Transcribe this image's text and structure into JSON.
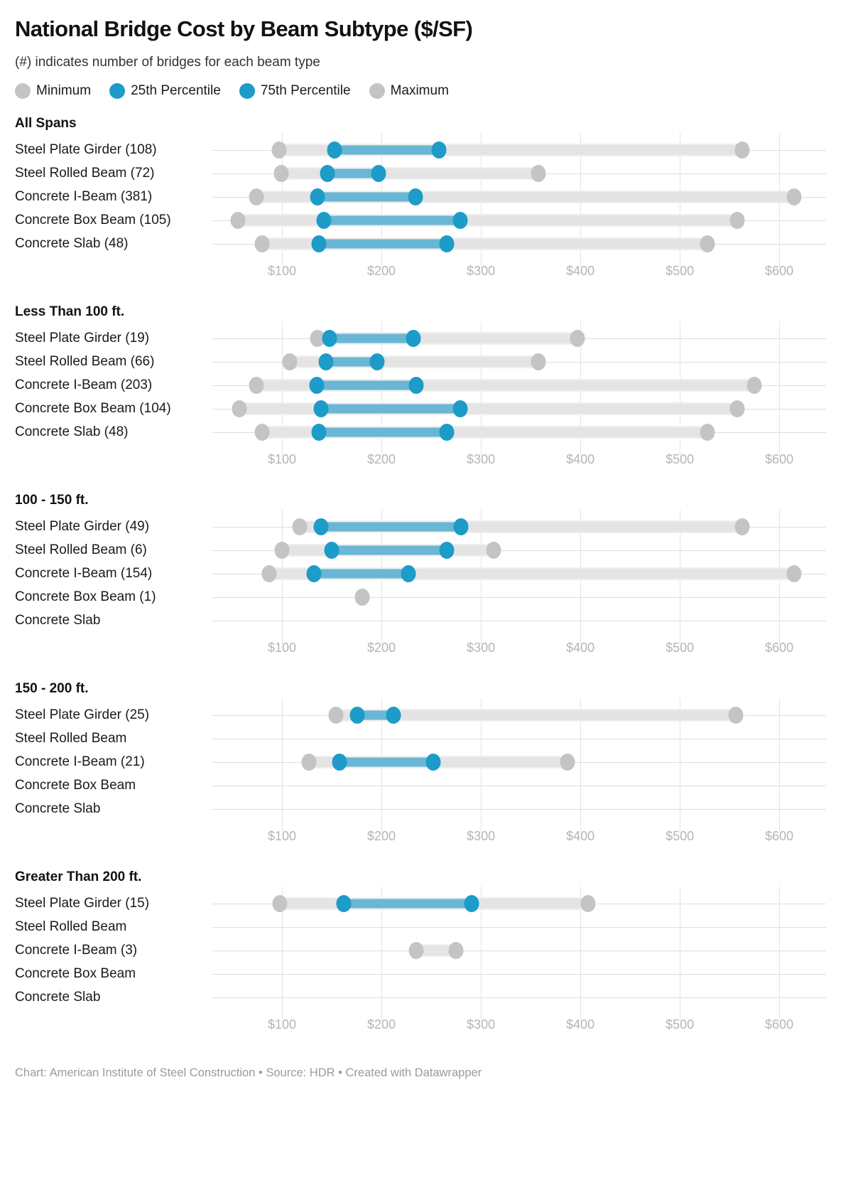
{
  "title": "National Bridge Cost by Beam Subtype ($/SF)",
  "subtitle": "(#) indicates number of bridges for each beam type",
  "legend": [
    {
      "id": "minimum",
      "label": "Minimum",
      "color": "#c4c4c4"
    },
    {
      "id": "p25",
      "label": "25th Percentile",
      "color": "#1d9bc9"
    },
    {
      "id": "p75",
      "label": "75th Percentile",
      "color": "#1d9bc9"
    },
    {
      "id": "maximum",
      "label": "Maximum",
      "color": "#c4c4c4"
    }
  ],
  "colors": {
    "dot_blue": "#1d9bc9",
    "dot_gray": "#c4c4c4",
    "bar_blue": "rgba(29,155,201,0.62)",
    "bar_gray": "#e4e4e4",
    "gridline": "#e4e4e4",
    "axis_text": "#b5b5b5"
  },
  "chart_data": {
    "type": "range-dot-plot",
    "unit": "$/SF",
    "value_domain": [
      30,
      647
    ],
    "axis_ticks": [
      100,
      200,
      300,
      400,
      500,
      600
    ],
    "axis_tick_labels": [
      "$100",
      "$200",
      "$300",
      "$400",
      "$500",
      "$600"
    ],
    "stat_names": [
      "min",
      "p25",
      "p75",
      "max"
    ],
    "panels": [
      {
        "title": "All Spans",
        "rows": [
          {
            "label": "Steel Plate Girder",
            "count": 108,
            "display_label": "Steel Plate Girder (108)",
            "min": 97,
            "p25": 153,
            "p75": 258,
            "max": 563
          },
          {
            "label": "Steel Rolled Beam",
            "count": 72,
            "display_label": "Steel Rolled Beam (72)",
            "min": 99,
            "p25": 146,
            "p75": 197,
            "max": 358
          },
          {
            "label": "Concrete I-Beam",
            "count": 381,
            "display_label": "Concrete I-Beam (381)",
            "min": 74,
            "p25": 136,
            "p75": 234,
            "max": 615
          },
          {
            "label": "Concrete Box Beam",
            "count": 105,
            "display_label": "Concrete Box Beam (105)",
            "min": 56,
            "p25": 142,
            "p75": 279,
            "max": 558
          },
          {
            "label": "Concrete Slab",
            "count": 48,
            "display_label": "Concrete Slab (48)",
            "min": 80,
            "p25": 137,
            "p75": 266,
            "max": 528
          }
        ]
      },
      {
        "title": "Less Than 100 ft.",
        "rows": [
          {
            "label": "Steel Plate Girder",
            "count": 19,
            "display_label": "Steel Plate Girder (19)",
            "min": 136,
            "p25": 148,
            "p75": 232,
            "max": 397
          },
          {
            "label": "Steel Rolled Beam",
            "count": 66,
            "display_label": "Steel Rolled Beam (66)",
            "min": 108,
            "p25": 144,
            "p75": 196,
            "max": 358
          },
          {
            "label": "Concrete I-Beam",
            "count": 203,
            "display_label": "Concrete I-Beam (203)",
            "min": 74,
            "p25": 135,
            "p75": 235,
            "max": 575
          },
          {
            "label": "Concrete Box Beam",
            "count": 104,
            "display_label": "Concrete Box Beam (104)",
            "min": 57,
            "p25": 139,
            "p75": 279,
            "max": 558
          },
          {
            "label": "Concrete Slab",
            "count": 48,
            "display_label": "Concrete Slab (48)",
            "min": 80,
            "p25": 137,
            "p75": 266,
            "max": 528
          }
        ]
      },
      {
        "title": "100 - 150 ft.",
        "rows": [
          {
            "label": "Steel Plate Girder",
            "count": 49,
            "display_label": "Steel Plate Girder (49)",
            "min": 118,
            "p25": 139,
            "p75": 280,
            "max": 563
          },
          {
            "label": "Steel Rolled Beam",
            "count": 6,
            "display_label": "Steel Rolled Beam (6)",
            "min": 100,
            "p25": 150,
            "p75": 266,
            "max": 313
          },
          {
            "label": "Concrete I-Beam",
            "count": 154,
            "display_label": "Concrete I-Beam (154)",
            "min": 87,
            "p25": 132,
            "p75": 227,
            "max": 615
          },
          {
            "label": "Concrete Box Beam",
            "count": 1,
            "display_label": "Concrete Box Beam (1)",
            "min": 181,
            "p25": null,
            "p75": null,
            "max": 181
          },
          {
            "label": "Concrete Slab",
            "count": null,
            "display_label": "Concrete Slab",
            "min": null,
            "p25": null,
            "p75": null,
            "max": null
          }
        ]
      },
      {
        "title": "150 - 200 ft.",
        "rows": [
          {
            "label": "Steel Plate Girder",
            "count": 25,
            "display_label": "Steel Plate Girder (25)",
            "min": 154,
            "p25": 176,
            "p75": 212,
            "max": 556
          },
          {
            "label": "Steel Rolled Beam",
            "count": null,
            "display_label": "Steel Rolled Beam",
            "min": null,
            "p25": null,
            "p75": null,
            "max": null
          },
          {
            "label": "Concrete I-Beam",
            "count": 21,
            "display_label": "Concrete I-Beam (21)",
            "min": 127,
            "p25": 158,
            "p75": 252,
            "max": 387
          },
          {
            "label": "Concrete Box Beam",
            "count": null,
            "display_label": "Concrete Box Beam",
            "min": null,
            "p25": null,
            "p75": null,
            "max": null
          },
          {
            "label": "Concrete Slab",
            "count": null,
            "display_label": "Concrete Slab",
            "min": null,
            "p25": null,
            "p75": null,
            "max": null
          }
        ]
      },
      {
        "title": "Greater Than 200 ft.",
        "rows": [
          {
            "label": "Steel Plate Girder",
            "count": 15,
            "display_label": "Steel Plate Girder (15)",
            "min": 98,
            "p25": 162,
            "p75": 291,
            "max": 408
          },
          {
            "label": "Steel Rolled Beam",
            "count": null,
            "display_label": "Steel Rolled Beam",
            "min": null,
            "p25": null,
            "p75": null,
            "max": null
          },
          {
            "label": "Concrete I-Beam",
            "count": 3,
            "display_label": "Concrete I-Beam (3)",
            "min": 235,
            "p25": null,
            "p75": null,
            "max": 275
          },
          {
            "label": "Concrete Box Beam",
            "count": null,
            "display_label": "Concrete Box Beam",
            "min": null,
            "p25": null,
            "p75": null,
            "max": null
          },
          {
            "label": "Concrete Slab",
            "count": null,
            "display_label": "Concrete Slab",
            "min": null,
            "p25": null,
            "p75": null,
            "max": null
          }
        ]
      }
    ]
  },
  "footer": "Chart: American Institute of Steel Construction • Source: HDR • Created with Datawrapper"
}
